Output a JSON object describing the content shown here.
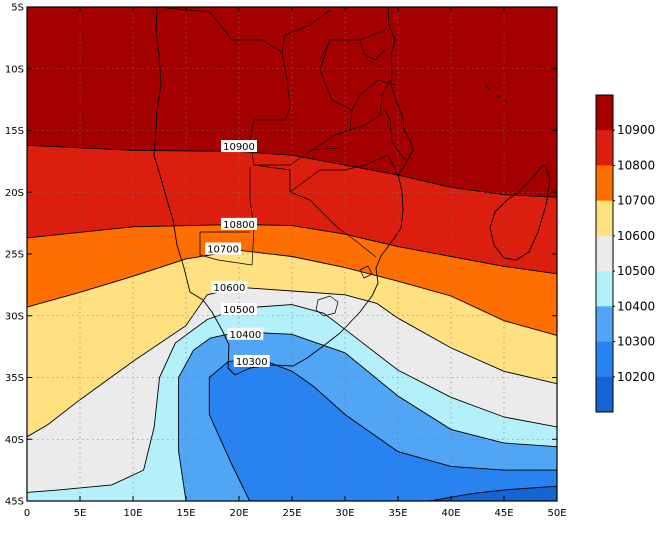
{
  "map": {
    "projection": "lat-lon",
    "lon_range": [
      0,
      50
    ],
    "lat_range": [
      -45,
      -5
    ],
    "x_ticks": [
      {
        "value": 0,
        "label": "0"
      },
      {
        "value": 5,
        "label": "5E"
      },
      {
        "value": 10,
        "label": "10E"
      },
      {
        "value": 15,
        "label": "15E"
      },
      {
        "value": 20,
        "label": "20E"
      },
      {
        "value": 25,
        "label": "25E"
      },
      {
        "value": 30,
        "label": "30E"
      },
      {
        "value": 35,
        "label": "35E"
      },
      {
        "value": 40,
        "label": "40E"
      },
      {
        "value": 45,
        "label": "45E"
      },
      {
        "value": 50,
        "label": "50E"
      }
    ],
    "y_ticks": [
      {
        "value": -5,
        "label": "5S"
      },
      {
        "value": -10,
        "label": "10S"
      },
      {
        "value": -15,
        "label": "15S"
      },
      {
        "value": -20,
        "label": "20S"
      },
      {
        "value": -25,
        "label": "25S"
      },
      {
        "value": -30,
        "label": "30S"
      },
      {
        "value": -35,
        "label": "35S"
      },
      {
        "value": -40,
        "label": "40S"
      },
      {
        "value": -45,
        "label": "45S"
      }
    ],
    "contour_labels": [
      {
        "text": "10900",
        "lon": 20.0,
        "lat": -16.3
      },
      {
        "text": "10800",
        "lon": 20.0,
        "lat": -22.6
      },
      {
        "text": "10700",
        "lon": 18.5,
        "lat": -24.6
      },
      {
        "text": "10600",
        "lon": 19.1,
        "lat": -27.7
      },
      {
        "text": "10500",
        "lon": 20.0,
        "lat": -29.5
      },
      {
        "text": "10400",
        "lon": 20.6,
        "lat": -31.5
      },
      {
        "text": "10300",
        "lon": 21.2,
        "lat": -33.7
      }
    ]
  },
  "legend": {
    "entries": [
      {
        "label": "10900",
        "color": "#a50000"
      },
      {
        "label": "10800",
        "color": "#dc1e0f"
      },
      {
        "label": "10700",
        "color": "#ff6e00"
      },
      {
        "label": "10600",
        "color": "#ffe182"
      },
      {
        "label": "10500",
        "color": "#ebebeb"
      },
      {
        "label": "10400",
        "color": "#b4f0fa"
      },
      {
        "label": "10300",
        "color": "#50a5f5"
      },
      {
        "label": "10200",
        "color": "#2882f0"
      }
    ],
    "band_colors": [
      "#a50000",
      "#dc1e0f",
      "#ff6e00",
      "#ffe182",
      "#ebebeb",
      "#b4f0fa",
      "#50a5f5",
      "#2882f0",
      "#1464d2"
    ]
  },
  "chart_data": {
    "type": "contour",
    "title": "",
    "xlabel": "",
    "ylabel": "",
    "xlim": [
      0,
      50
    ],
    "ylim": [
      -45,
      -5
    ],
    "levels": [
      10200,
      10300,
      10400,
      10500,
      10600,
      10700,
      10800,
      10900
    ],
    "band_colors": [
      "#1464d2",
      "#2882f0",
      "#50a5f5",
      "#b4f0fa",
      "#ebebeb",
      "#ffe182",
      "#ff6e00",
      "#dc1e0f",
      "#a50000"
    ],
    "contours": [
      {
        "level": 10900,
        "points": [
          [
            0,
            -16.2
          ],
          [
            10,
            -16.6
          ],
          [
            20,
            -16.7
          ],
          [
            25,
            -17.0
          ],
          [
            30,
            -17.8
          ],
          [
            35,
            -18.6
          ],
          [
            40,
            -19.6
          ],
          [
            45,
            -20.2
          ],
          [
            50,
            -20.4
          ]
        ]
      },
      {
        "level": 10800,
        "points": [
          [
            0,
            -23.7
          ],
          [
            10,
            -22.8
          ],
          [
            20,
            -22.6
          ],
          [
            25,
            -22.7
          ],
          [
            30,
            -23.4
          ],
          [
            35,
            -24.4
          ],
          [
            40,
            -25.2
          ],
          [
            45,
            -26.0
          ],
          [
            50,
            -26.6
          ]
        ]
      },
      {
        "level": 10700,
        "points": [
          [
            0,
            -29.3
          ],
          [
            5,
            -28.1
          ],
          [
            10,
            -26.8
          ],
          [
            15,
            -25.4
          ],
          [
            20,
            -24.7
          ],
          [
            25,
            -25.2
          ],
          [
            30,
            -26.1
          ],
          [
            35,
            -27.2
          ],
          [
            40,
            -28.4
          ],
          [
            45,
            -30.4
          ],
          [
            50,
            -31.6
          ]
        ]
      },
      {
        "level": 10600,
        "points": [
          [
            0,
            -39.8
          ],
          [
            2,
            -38.8
          ],
          [
            5,
            -36.8
          ],
          [
            10,
            -33.7
          ],
          [
            15,
            -30.8
          ],
          [
            17,
            -28.3
          ],
          [
            20,
            -27.7
          ],
          [
            25,
            -28.0
          ],
          [
            30,
            -28.3
          ],
          [
            33,
            -29.0
          ],
          [
            35,
            -30.2
          ],
          [
            40,
            -32.6
          ],
          [
            45,
            -34.5
          ],
          [
            50,
            -35.5
          ]
        ]
      },
      {
        "level": 10500,
        "points": [
          [
            0,
            -44.3
          ],
          [
            3,
            -44.1
          ],
          [
            8,
            -43.7
          ],
          [
            11,
            -42.5
          ],
          [
            12,
            -39.0
          ],
          [
            12.5,
            -35.0
          ],
          [
            14,
            -32.2
          ],
          [
            17,
            -30.3
          ],
          [
            20,
            -29.4
          ],
          [
            25,
            -29.1
          ],
          [
            28,
            -29.8
          ],
          [
            30,
            -31.1
          ],
          [
            35,
            -34.4
          ],
          [
            40,
            -36.6
          ],
          [
            45,
            -38.2
          ],
          [
            50,
            -39.0
          ]
        ]
      },
      {
        "level": 10400,
        "points": [
          [
            15,
            -45.0
          ],
          [
            14.3,
            -41.0
          ],
          [
            14.3,
            -35.0
          ],
          [
            15.7,
            -32.8
          ],
          [
            17.3,
            -31.8
          ],
          [
            20,
            -31.3
          ],
          [
            25,
            -31.5
          ],
          [
            30,
            -33.0
          ],
          [
            35,
            -36.5
          ],
          [
            40,
            -39.2
          ],
          [
            45,
            -40.3
          ],
          [
            50,
            -40.6
          ]
        ]
      },
      {
        "level": 10300,
        "points": [
          [
            21,
            -45.0
          ],
          [
            19.3,
            -42.0
          ],
          [
            17.2,
            -38.0
          ],
          [
            17.2,
            -35.0
          ],
          [
            19.0,
            -33.7
          ],
          [
            22,
            -33.5
          ],
          [
            25,
            -34.5
          ],
          [
            27,
            -35.7
          ],
          [
            30,
            -38.0
          ],
          [
            35,
            -41.0
          ],
          [
            40,
            -42.2
          ],
          [
            45,
            -42.5
          ],
          [
            50,
            -42.5
          ]
        ]
      },
      {
        "level": 10200,
        "points": [
          [
            38,
            -45.0
          ],
          [
            42,
            -44.4
          ],
          [
            45,
            -44.1
          ],
          [
            50,
            -43.8
          ]
        ]
      }
    ]
  }
}
